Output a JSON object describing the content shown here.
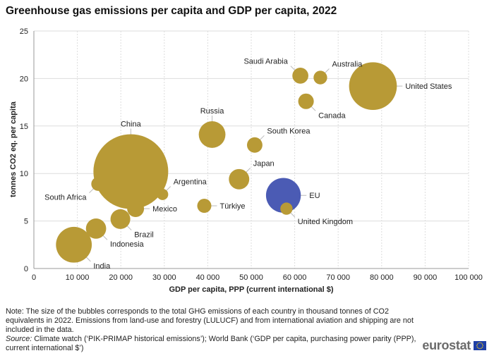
{
  "title": "Greenhouse gas emissions per capita and GDP per capita, 2022",
  "chart_data": {
    "type": "scatter",
    "subtype": "bubble",
    "xlabel": "GDP per capita, PPP (current international $)",
    "ylabel": "tonnes CO2 eq. per capita",
    "xlim": [
      0,
      100000
    ],
    "ylim": [
      0,
      25
    ],
    "x_ticks": [
      0,
      10000,
      20000,
      30000,
      40000,
      50000,
      60000,
      70000,
      80000,
      90000,
      100000
    ],
    "x_tick_labels": [
      "0",
      "10 000",
      "20 000",
      "30 000",
      "40 000",
      "50 000",
      "60 000",
      "70 000",
      "80 000",
      "90 000",
      "100 000"
    ],
    "y_ticks": [
      0,
      5,
      10,
      15,
      20,
      25
    ],
    "y_tick_labels": [
      "0",
      "5",
      "10",
      "15",
      "20",
      "25"
    ],
    "grid": true,
    "bubble_size_measure": "total GHG emissions (thousand tonnes CO2 eq.)",
    "colors": {
      "country": "#b89a36",
      "eu": "#4b5bb4",
      "leader": "#bbbbbb",
      "grid": "#dddddd",
      "axis": "#999999"
    },
    "points": [
      {
        "label": "China",
        "x": 22300,
        "y": 10.2,
        "size": 15700000,
        "group": "country",
        "label_dir": "up"
      },
      {
        "label": "United States",
        "x": 78000,
        "y": 19.2,
        "size": 6400000,
        "group": "country",
        "label_dir": "right"
      },
      {
        "label": "India",
        "x": 9200,
        "y": 2.5,
        "size": 3600000,
        "group": "country",
        "label_dir": "down-right"
      },
      {
        "label": "EU",
        "x": 57400,
        "y": 7.7,
        "size": 3400000,
        "group": "eu",
        "label_dir": "right"
      },
      {
        "label": "Russia",
        "x": 41000,
        "y": 14.1,
        "size": 2000000,
        "group": "country",
        "label_dir": "up"
      },
      {
        "label": "Indonesia",
        "x": 14300,
        "y": 4.2,
        "size": 1150000,
        "group": "country",
        "label_dir": "down-right"
      },
      {
        "label": "Brazil",
        "x": 19900,
        "y": 5.2,
        "size": 1100000,
        "group": "country",
        "label_dir": "down-right"
      },
      {
        "label": "Japan",
        "x": 47200,
        "y": 9.4,
        "size": 1170000,
        "group": "country",
        "label_dir": "up-right"
      },
      {
        "label": "Mexico",
        "x": 23400,
        "y": 6.3,
        "size": 800000,
        "group": "country",
        "label_dir": "right"
      },
      {
        "label": "South Korea",
        "x": 50800,
        "y": 13.0,
        "size": 670000,
        "group": "country",
        "label_dir": "up-right"
      },
      {
        "label": "Canada",
        "x": 62600,
        "y": 17.6,
        "size": 680000,
        "group": "country",
        "label_dir": "down-right"
      },
      {
        "label": "Saudi Arabia",
        "x": 61300,
        "y": 20.3,
        "size": 720000,
        "group": "country",
        "label_dir": "up-left"
      },
      {
        "label": "Australia",
        "x": 65900,
        "y": 20.1,
        "size": 520000,
        "group": "country",
        "label_dir": "up-right"
      },
      {
        "label": "South Africa",
        "x": 14800,
        "y": 8.9,
        "size": 540000,
        "group": "country",
        "label_dir": "down-left"
      },
      {
        "label": "Türkiye",
        "x": 39200,
        "y": 6.6,
        "size": 560000,
        "group": "country",
        "label_dir": "right"
      },
      {
        "label": "United Kingdom",
        "x": 58100,
        "y": 6.3,
        "size": 420000,
        "group": "country",
        "label_dir": "down-right"
      },
      {
        "label": "Argentina",
        "x": 29600,
        "y": 7.8,
        "size": 360000,
        "group": "country",
        "label_dir": "up-right"
      }
    ]
  },
  "notes": {
    "note": "Note: The size of the bubbles corresponds to the total GHG emissions of each country in thousand tonnes of CO2 equivalents in 2022. Emissions from land-use and forestry (LULUCF) and from international aviation and shipping are not included in the data.",
    "source_label": "Source:",
    "source_text": " Climate watch (‘PIK-PRIMAP historical emissions’); World Bank (‘GDP per capita, purchasing power parity (PPP), current international $’)"
  },
  "logo": {
    "text": "eurostat",
    "flag_icon": "eu-flag-icon"
  }
}
